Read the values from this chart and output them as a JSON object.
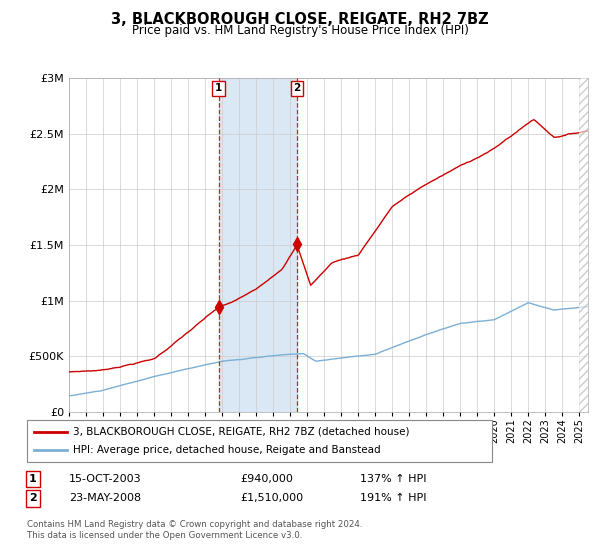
{
  "title": "3, BLACKBOROUGH CLOSE, REIGATE, RH2 7BZ",
  "subtitle": "Price paid vs. HM Land Registry's House Price Index (HPI)",
  "legend_line1": "3, BLACKBOROUGH CLOSE, REIGATE, RH2 7BZ (detached house)",
  "legend_line2": "HPI: Average price, detached house, Reigate and Banstead",
  "sale1_date": "15-OCT-2003",
  "sale1_price": "£940,000",
  "sale1_pct": "137% ↑ HPI",
  "sale2_date": "23-MAY-2008",
  "sale2_price": "£1,510,000",
  "sale2_pct": "191% ↑ HPI",
  "footnote_line1": "Contains HM Land Registry data © Crown copyright and database right 2024.",
  "footnote_line2": "This data is licensed under the Open Government Licence v3.0.",
  "red_color": "#cc0000",
  "blue_color": "#7bafd4",
  "shade_color": "#dae8f5",
  "grid_color": "#cccccc",
  "background_color": "#ffffff",
  "sale1_x": 2003.79,
  "sale2_x": 2008.39,
  "ylim_max": 3000000,
  "xlim_min": 1995.0,
  "xlim_max": 2025.5
}
